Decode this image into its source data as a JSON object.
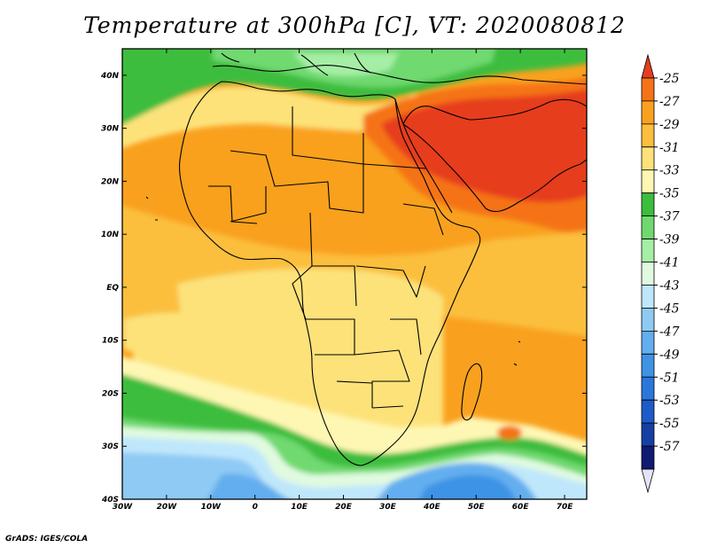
{
  "title": "Temperature at 300hPa [C], VT: 2020080812",
  "credit": "GrADS: IGES/COLA",
  "map": {
    "lon_range": [
      -30,
      75
    ],
    "lat_range": [
      -40,
      45
    ],
    "lon_ticks": [
      {
        "value": -30,
        "label": "30W"
      },
      {
        "value": -20,
        "label": "20W"
      },
      {
        "value": -10,
        "label": "10W"
      },
      {
        "value": 0,
        "label": "0"
      },
      {
        "value": 10,
        "label": "10E"
      },
      {
        "value": 20,
        "label": "20E"
      },
      {
        "value": 30,
        "label": "30E"
      },
      {
        "value": 40,
        "label": "40E"
      },
      {
        "value": 50,
        "label": "50E"
      },
      {
        "value": 60,
        "label": "60E"
      },
      {
        "value": 70,
        "label": "70E"
      }
    ],
    "lat_ticks": [
      {
        "value": 40,
        "label": "40N"
      },
      {
        "value": 30,
        "label": "30N"
      },
      {
        "value": 20,
        "label": "20N"
      },
      {
        "value": 10,
        "label": "10N"
      },
      {
        "value": 0,
        "label": "EQ"
      },
      {
        "value": -10,
        "label": "10S"
      },
      {
        "value": -20,
        "label": "20S"
      },
      {
        "value": -30,
        "label": "30S"
      },
      {
        "value": -40,
        "label": "40S"
      }
    ]
  },
  "colorbar": {
    "orientation": "vertical",
    "colors": [
      "#e63c1e",
      "#f57317",
      "#f9a11f",
      "#fbbf3d",
      "#fde27a",
      "#fef7b3",
      "#3cbd3c",
      "#6fd96f",
      "#a6eea6",
      "#e0fae0",
      "#bfe7fb",
      "#8fcaf5",
      "#63aeee",
      "#3e93e5",
      "#2a77db",
      "#1d5bc8",
      "#163fa3",
      "#101a70",
      "#e3e3fb"
    ],
    "labels": [
      {
        "value": "-25",
        "label": "-25"
      },
      {
        "value": "-27",
        "label": "-27"
      },
      {
        "value": "-29",
        "label": "-29"
      },
      {
        "value": "-31",
        "label": "-31"
      },
      {
        "value": "-33",
        "label": "-33"
      },
      {
        "value": "-35",
        "label": "-35"
      },
      {
        "value": "-37",
        "label": "-37"
      },
      {
        "value": "-39",
        "label": "-39"
      },
      {
        "value": "-41",
        "label": "-41"
      },
      {
        "value": "-43",
        "label": "-43"
      },
      {
        "value": "-45",
        "label": "-45"
      },
      {
        "value": "-47",
        "label": "-47"
      },
      {
        "value": "-49",
        "label": "-49"
      },
      {
        "value": "-51",
        "label": "-51"
      },
      {
        "value": "-53",
        "label": "-53"
      },
      {
        "value": "-55",
        "label": "-55"
      },
      {
        "value": "-57",
        "label": "-57"
      }
    ]
  }
}
